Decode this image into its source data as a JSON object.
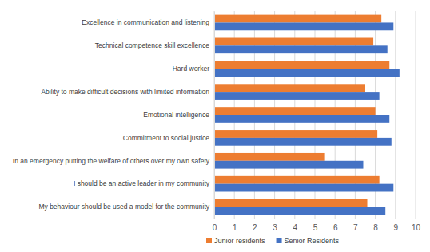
{
  "chart_data": {
    "type": "bar",
    "orientation": "horizontal",
    "grid": true,
    "legend": "bottom",
    "categories": [
      "Excellence in communication and listening",
      "Technical competence skill excellence",
      "Hard worker",
      "Ability to make difficult decisions with limited information",
      "Emotional intelligence",
      "Commitment to social justice",
      "In an emergency putting the welfare of others over my own safety",
      "I should be an active leader in my community",
      "My behaviour should be used a model for the community"
    ],
    "series": [
      {
        "name": "Junior residents",
        "color": "#ed7d31",
        "values": [
          8.3,
          7.9,
          8.7,
          7.5,
          8.0,
          8.1,
          5.5,
          8.2,
          7.6
        ]
      },
      {
        "name": "Senior Residents",
        "color": "#4472c4",
        "values": [
          8.9,
          8.6,
          9.2,
          8.2,
          8.7,
          8.8,
          7.4,
          8.9,
          8.5
        ]
      }
    ],
    "xlim": [
      0,
      10
    ],
    "xticks": [
      0,
      1,
      2,
      3,
      4,
      5,
      6,
      7,
      8,
      9,
      10
    ]
  }
}
